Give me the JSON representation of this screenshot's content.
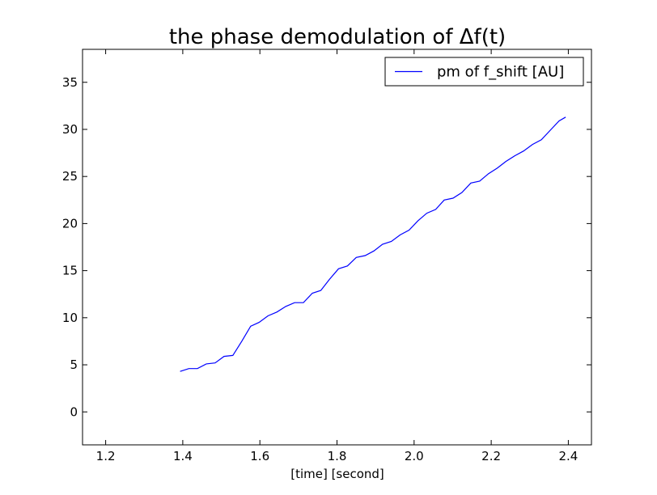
{
  "chart_data": {
    "type": "line",
    "title": "the phase demodulation of Δf(t)",
    "xlabel": "[time] [second]",
    "ylabel": "",
    "xlim": [
      1.14,
      2.46
    ],
    "ylim": [
      -3.5,
      38.5
    ],
    "xticks": [
      1.2,
      1.4,
      1.6,
      1.8,
      2.0,
      2.2,
      2.4
    ],
    "xtick_labels": [
      "1.2",
      "1.4",
      "1.6",
      "1.8",
      "2.0",
      "2.2",
      "2.4"
    ],
    "yticks": [
      0,
      5,
      10,
      15,
      20,
      25,
      30,
      35
    ],
    "ytick_labels": [
      "0",
      "5",
      "10",
      "15",
      "20",
      "25",
      "30",
      "35"
    ],
    "grid": false,
    "legend_position": "top-right",
    "series": [
      {
        "name": "pm of f_shift [AU]",
        "color": "#0000ff",
        "x": [
          1.393,
          1.416,
          1.438,
          1.461,
          1.484,
          1.507,
          1.53,
          1.553,
          1.576,
          1.598,
          1.621,
          1.644,
          1.667,
          1.69,
          1.713,
          1.736,
          1.758,
          1.781,
          1.804,
          1.827,
          1.85,
          1.873,
          1.896,
          1.918,
          1.941,
          1.964,
          1.987,
          2.01,
          2.033,
          2.056,
          2.078,
          2.101,
          2.124,
          2.147,
          2.17,
          2.193,
          2.216,
          2.238,
          2.261,
          2.284,
          2.307,
          2.33,
          2.353,
          2.376,
          2.393
        ],
        "y": [
          4.3,
          4.6,
          4.6,
          5.1,
          5.2,
          5.9,
          6.0,
          7.5,
          9.1,
          9.5,
          10.2,
          10.6,
          11.2,
          11.6,
          11.6,
          12.6,
          12.9,
          14.1,
          15.2,
          15.5,
          16.4,
          16.6,
          17.1,
          17.8,
          18.1,
          18.8,
          19.3,
          20.3,
          21.1,
          21.5,
          22.5,
          22.7,
          23.3,
          24.3,
          24.5,
          25.3,
          25.9,
          26.6,
          27.2,
          27.7,
          28.4,
          28.9,
          29.9,
          30.9,
          31.3
        ]
      }
    ]
  }
}
